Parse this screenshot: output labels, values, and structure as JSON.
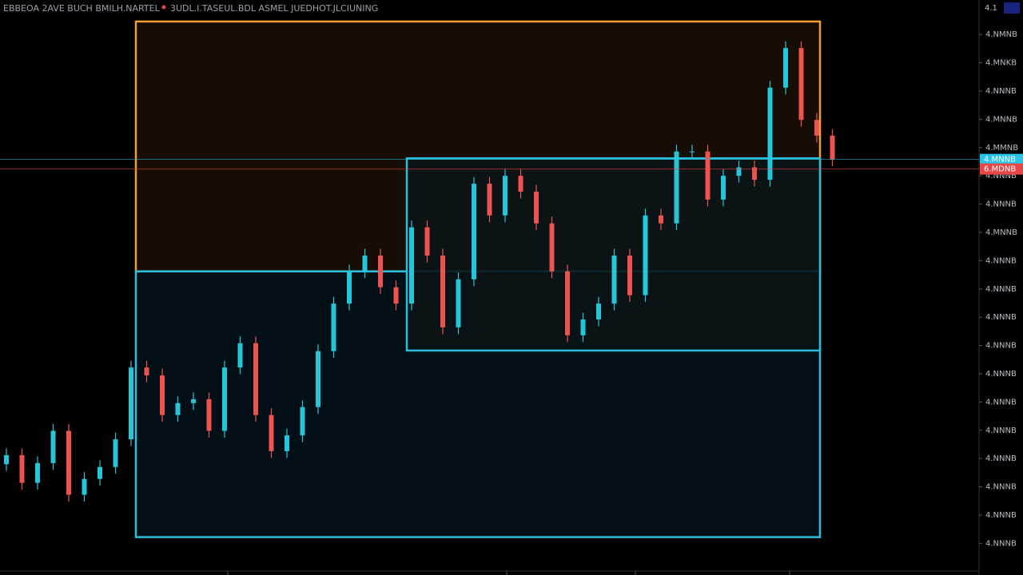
{
  "chart_data": {
    "type": "candlestick",
    "title": "EBBEOA 2AVE BUCH BMILH.NARTEL",
    "subtitle": "3UDL.I.TASEUL.BDL ASMEL JUEDHOT.JLCIUNING",
    "corner_label": "4.1",
    "up_color": "#26c6da",
    "down_color": "#ef5350",
    "ylim": [
      3.944,
      4.961
    ],
    "yticks": [
      {
        "value": 4.9,
        "label": "4.NMNB"
      },
      {
        "value": 4.85,
        "label": "4.MNKB"
      },
      {
        "value": 4.8,
        "label": "4.NNNB"
      },
      {
        "value": 4.75,
        "label": "4.MNNB"
      },
      {
        "value": 4.7,
        "label": "4.MMNB"
      },
      {
        "value": 4.65,
        "label": "4.NNNB"
      },
      {
        "value": 4.6,
        "label": "4.NNNB"
      },
      {
        "value": 4.55,
        "label": "4.MNNB"
      },
      {
        "value": 4.5,
        "label": "4.NNNB"
      },
      {
        "value": 4.45,
        "label": "4.NNNB"
      },
      {
        "value": 4.4,
        "label": "4.NNNB"
      },
      {
        "value": 4.35,
        "label": "4.NNNB"
      },
      {
        "value": 4.3,
        "label": "4.NNNB"
      },
      {
        "value": 4.25,
        "label": "4.NNNB"
      },
      {
        "value": 4.2,
        "label": "4.NNNB"
      },
      {
        "value": 4.15,
        "label": "4.NNNB"
      },
      {
        "value": 4.1,
        "label": "4.NNNB"
      },
      {
        "value": 4.05,
        "label": "4.NNNB"
      },
      {
        "value": 4.0,
        "label": "4.NNNB"
      }
    ],
    "open": [
      4.14,
      4.156,
      4.107,
      4.142,
      4.199,
      4.086,
      4.114,
      4.135,
      4.184,
      4.311,
      4.297,
      4.227,
      4.248,
      4.255,
      4.199,
      4.311,
      4.354,
      4.227,
      4.163,
      4.191,
      4.241,
      4.34,
      4.424,
      4.481,
      4.509,
      4.453,
      4.424,
      4.559,
      4.509,
      4.382,
      4.467,
      4.636,
      4.58,
      4.65,
      4.622,
      4.566,
      4.481,
      4.368,
      4.396,
      4.424,
      4.509,
      4.439,
      4.58,
      4.566,
      4.693,
      4.693,
      4.608,
      4.65,
      4.665,
      4.643,
      4.806,
      4.876,
      4.749,
      4.721
    ],
    "high": [
      4.168,
      4.168,
      4.154,
      4.211,
      4.211,
      4.126,
      4.147,
      4.196,
      4.323,
      4.323,
      4.309,
      4.26,
      4.267,
      4.267,
      4.323,
      4.366,
      4.366,
      4.239,
      4.203,
      4.253,
      4.352,
      4.436,
      4.493,
      4.521,
      4.521,
      4.465,
      4.571,
      4.571,
      4.521,
      4.479,
      4.648,
      4.648,
      4.662,
      4.662,
      4.634,
      4.578,
      4.493,
      4.408,
      4.436,
      4.521,
      4.521,
      4.592,
      4.592,
      4.705,
      4.705,
      4.705,
      4.662,
      4.677,
      4.677,
      4.818,
      4.888,
      4.888,
      4.761,
      4.733
    ],
    "low": [
      4.128,
      4.095,
      4.095,
      4.13,
      4.074,
      4.074,
      4.102,
      4.123,
      4.172,
      4.285,
      4.215,
      4.215,
      4.236,
      4.187,
      4.187,
      4.299,
      4.215,
      4.151,
      4.151,
      4.179,
      4.229,
      4.328,
      4.412,
      4.469,
      4.441,
      4.412,
      4.412,
      4.497,
      4.37,
      4.37,
      4.455,
      4.568,
      4.568,
      4.61,
      4.554,
      4.469,
      4.356,
      4.356,
      4.384,
      4.412,
      4.427,
      4.427,
      4.554,
      4.554,
      4.681,
      4.596,
      4.596,
      4.638,
      4.631,
      4.631,
      4.794,
      4.737,
      4.709,
      4.667
    ],
    "close": [
      4.156,
      4.107,
      4.142,
      4.199,
      4.086,
      4.114,
      4.135,
      4.184,
      4.311,
      4.297,
      4.227,
      4.248,
      4.255,
      4.199,
      4.311,
      4.354,
      4.227,
      4.163,
      4.191,
      4.241,
      4.34,
      4.424,
      4.481,
      4.509,
      4.453,
      4.424,
      4.559,
      4.509,
      4.382,
      4.467,
      4.636,
      4.58,
      4.65,
      4.622,
      4.566,
      4.481,
      4.368,
      4.396,
      4.424,
      4.509,
      4.439,
      4.58,
      4.566,
      4.693,
      4.693,
      4.608,
      4.65,
      4.665,
      4.643,
      4.806,
      4.876,
      4.749,
      4.721,
      4.679
    ],
    "zones": [
      {
        "top": 4.923,
        "bottom": 4.481,
        "color": "#f0a030",
        "fill": "#1a0e04"
      },
      {
        "top": 4.481,
        "bottom": 4.011,
        "color": "#29c0e0",
        "fill": "#031118"
      },
      {
        "top": 4.681,
        "bottom": 4.341,
        "color": "#29c0e0",
        "fill": "#0a1416"
      }
    ],
    "price_lines": [
      {
        "value": 4.679,
        "label": "4.MNNB",
        "color": "#29c5e6"
      },
      {
        "value": 4.662,
        "label": "6.MDNB",
        "color": "#e84545"
      }
    ]
  }
}
